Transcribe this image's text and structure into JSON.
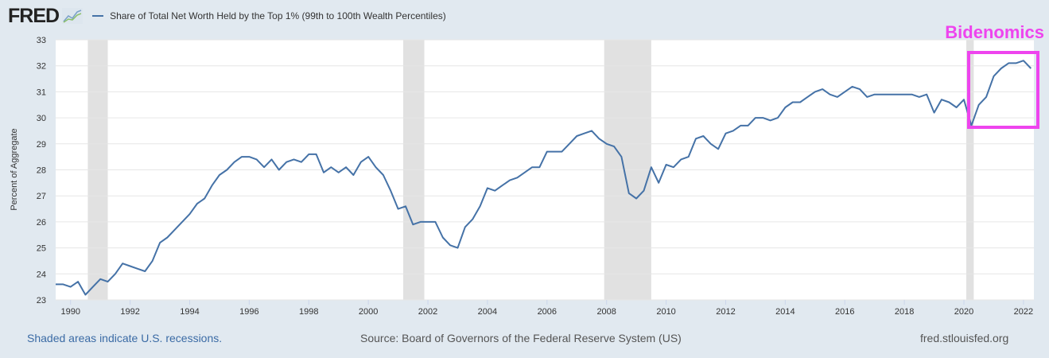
{
  "header": {
    "logo": "FRED",
    "series_name": "Share of Total Net Worth Held by the Top 1% (99th to 100th Wealth Percentiles)"
  },
  "annotation": {
    "label": "Bidenomics",
    "color": "#ee44ee"
  },
  "footer": {
    "recession_note": "Shaded areas indicate U.S. recessions.",
    "source": "Source: Board of Governors of the Federal Reserve System (US)",
    "site": "fred.stlouisfed.org"
  },
  "chart_data": {
    "type": "line",
    "title": "",
    "xlabel": "",
    "ylabel": "Percent of Aggregate",
    "xlim": [
      1989.5,
      2022.35
    ],
    "ylim": [
      23,
      33
    ],
    "grid": true,
    "legend": "top-left",
    "line_color": "#4572a7",
    "x_ticks": [
      "1990",
      "1992",
      "1994",
      "1996",
      "1998",
      "2000",
      "2002",
      "2004",
      "2006",
      "2008",
      "2010",
      "2012",
      "2014",
      "2016",
      "2018",
      "2020",
      "2022"
    ],
    "y_ticks": [
      "23",
      "24",
      "25",
      "26",
      "27",
      "28",
      "29",
      "30",
      "31",
      "32",
      "33"
    ],
    "recessions": [
      [
        1990.58,
        1991.25
      ],
      [
        2001.17,
        2001.88
      ],
      [
        2007.92,
        2009.5
      ],
      [
        2020.08,
        2020.33
      ]
    ],
    "series": [
      {
        "name": "Share of Total Net Worth Held by the Top 1% (99th to 100th Wealth Percentiles)",
        "start": "1989Q3",
        "frequency": "quarterly",
        "values": [
          23.6,
          23.6,
          23.5,
          23.7,
          23.2,
          23.5,
          23.8,
          23.7,
          24.0,
          24.4,
          24.3,
          24.2,
          24.1,
          24.5,
          25.2,
          25.4,
          25.7,
          26.0,
          26.3,
          26.7,
          26.9,
          27.4,
          27.8,
          28.0,
          28.3,
          28.5,
          28.5,
          28.4,
          28.1,
          28.4,
          28.0,
          28.3,
          28.4,
          28.3,
          28.6,
          28.6,
          27.9,
          28.1,
          27.9,
          28.1,
          27.8,
          28.3,
          28.5,
          28.1,
          27.8,
          27.2,
          26.5,
          26.6,
          25.9,
          26.0,
          26.0,
          26.0,
          25.4,
          25.1,
          25.0,
          25.8,
          26.1,
          26.6,
          27.3,
          27.2,
          27.4,
          27.6,
          27.7,
          27.9,
          28.1,
          28.1,
          28.7,
          28.7,
          28.7,
          29.0,
          29.3,
          29.4,
          29.5,
          29.2,
          29.0,
          28.9,
          28.5,
          27.1,
          26.9,
          27.2,
          28.1,
          27.5,
          28.2,
          28.1,
          28.4,
          28.5,
          29.2,
          29.3,
          29.0,
          28.8,
          29.4,
          29.5,
          29.7,
          29.7,
          30.0,
          30.0,
          29.9,
          30.0,
          30.4,
          30.6,
          30.6,
          30.8,
          31.0,
          31.1,
          30.9,
          30.8,
          31.0,
          31.2,
          31.1,
          30.8,
          30.9,
          30.9,
          30.9,
          30.9,
          30.9,
          30.9,
          30.8,
          30.9,
          30.2,
          30.7,
          30.6,
          30.4,
          30.7,
          29.7,
          30.5,
          30.8,
          31.6,
          31.9,
          32.1,
          32.1,
          32.2,
          31.9
        ]
      }
    ]
  }
}
